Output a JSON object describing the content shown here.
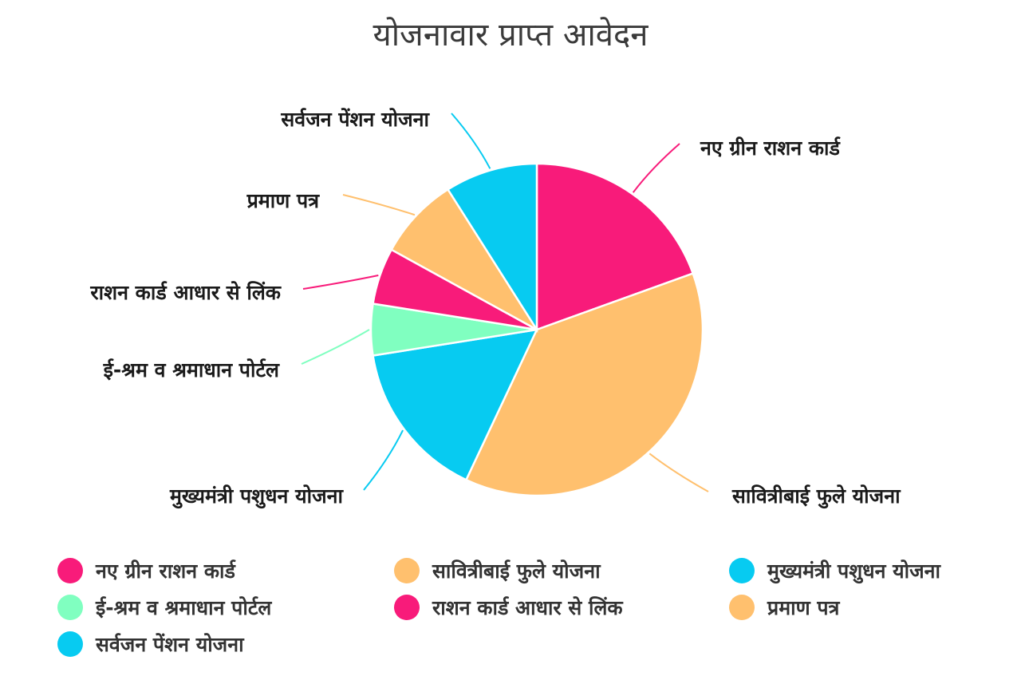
{
  "chart_data": {
    "type": "pie",
    "title": "योजनावार प्राप्त आवेदन",
    "slices": [
      {
        "label": "नए ग्रीन राशन कार्ड",
        "value": 19.5,
        "color": "#f81b7a"
      },
      {
        "label": "सावित्रीबाई फुले योजना",
        "value": 37.5,
        "color": "#ffc06e"
      },
      {
        "label": "मुख्यमंत्री पशुधन योजना",
        "value": 15.5,
        "color": "#07cbf1"
      },
      {
        "label": "ई-श्रम व श्रमाधान पोर्टल",
        "value": 5.0,
        "color": "#80ffc0"
      },
      {
        "label": "राशन कार्ड आधार से लिंक",
        "value": 5.5,
        "color": "#f81b7a"
      },
      {
        "label": "प्रमाण पत्र",
        "value": 8.0,
        "color": "#ffc06e"
      },
      {
        "label": "सर्वजन पेंशन योजना",
        "value": 9.0,
        "color": "#07cbf1"
      }
    ],
    "legend_position": "bottom"
  }
}
